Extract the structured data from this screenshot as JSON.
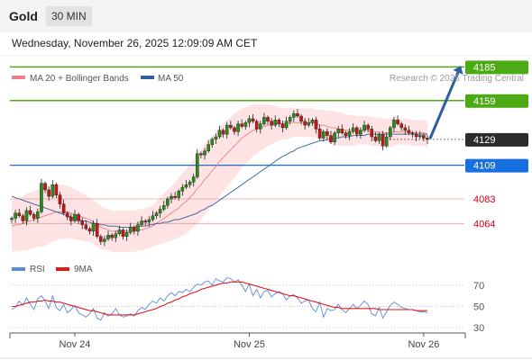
{
  "header": {
    "symbol": "Gold",
    "timeframe": "30 MIN"
  },
  "datetime": "Wednesday, November 26, 2025 12:09:09 AM CET",
  "legend": [
    {
      "label": "MA 20 + Bollinger Bands",
      "color": "#f08080"
    },
    {
      "label": "MA 50",
      "color": "#335f9e"
    }
  ],
  "credit": "Research © 2025 Trading Central",
  "chart_data": [
    {
      "type": "candlestick",
      "title": "",
      "y_axis": {
        "min": 4035,
        "max": 4195
      },
      "x_ticks": [
        {
          "index": 17,
          "label": "Nov 24"
        },
        {
          "index": 64,
          "label": "Nov 25"
        },
        {
          "index": 111,
          "label": "Nov 26"
        }
      ],
      "levels": [
        {
          "value": 4185,
          "label": "4185",
          "role": "resistance target",
          "color": "#4caa14",
          "style": "line-badge"
        },
        {
          "value": 4159,
          "label": "4159",
          "role": "resistance",
          "color": "#4caa14",
          "style": "line-badge"
        },
        {
          "value": 4129,
          "label": "4129",
          "role": "last price",
          "color": "#2b2b2b",
          "style": "dotted-badge"
        },
        {
          "value": 4109,
          "label": "4109",
          "role": "pivot",
          "color": "#1a6fe0",
          "style": "line-badge"
        },
        {
          "value": 4083,
          "label": "4083",
          "role": "support",
          "color": "#d0021b",
          "style": "thin-text"
        },
        {
          "value": 4064,
          "label": "4064",
          "role": "support",
          "color": "#d0021b",
          "style": "thin-text"
        }
      ],
      "forecast_arrow": {
        "from": 4129,
        "to": 4185,
        "color": "#2b5e9e"
      },
      "close": [
        4068,
        4072,
        4070,
        4066,
        4074,
        4071,
        4068,
        4073,
        4095,
        4090,
        4085,
        4094,
        4086,
        4079,
        4072,
        4069,
        4066,
        4071,
        4066,
        4063,
        4060,
        4058,
        4064,
        4054,
        4050,
        4052,
        4055,
        4053,
        4056,
        4059,
        4054,
        4057,
        4061,
        4058,
        4063,
        4066,
        4065,
        4067,
        4070,
        4072,
        4075,
        4078,
        4083,
        4085,
        4084,
        4089,
        4092,
        4094,
        4096,
        4100,
        4118,
        4117,
        4120,
        4125,
        4129,
        4131,
        4136,
        4133,
        4140,
        4138,
        4135,
        4141,
        4139,
        4142,
        4145,
        4143,
        4137,
        4141,
        4146,
        4143,
        4140,
        4144,
        4141,
        4138,
        4143,
        4146,
        4149,
        4147,
        4143,
        4140,
        4142,
        4144,
        4137,
        4130,
        4135,
        4132,
        4127,
        4134,
        4137,
        4134,
        4132,
        4135,
        4138,
        4133,
        4136,
        4140,
        4137,
        4131,
        4128,
        4133,
        4124,
        4131,
        4138,
        4144,
        4141,
        4138,
        4136,
        4134,
        4133,
        4131,
        4132,
        4130,
        4129
      ],
      "ma20": [
        4062,
        4063,
        4063,
        4064,
        4065,
        4066,
        4067,
        4068,
        4069,
        4070,
        4071,
        4072,
        4073,
        4073,
        4073,
        4073,
        4072,
        4071,
        4070,
        4069,
        4068,
        4067,
        4065,
        4063,
        4061,
        4060,
        4059,
        4058,
        4058,
        4058,
        4058,
        4058,
        4058,
        4058,
        4059,
        4059,
        4060,
        4061,
        4062,
        4064,
        4066,
        4068,
        4070,
        4072,
        4074,
        4076,
        4079,
        4081,
        4084,
        4087,
        4091,
        4094,
        4098,
        4101,
        4105,
        4108,
        4112,
        4115,
        4118,
        4121,
        4124,
        4127,
        4130,
        4132,
        4134,
        4136,
        4137,
        4138,
        4139,
        4140,
        4140,
        4141,
        4141,
        4141,
        4141,
        4142,
        4142,
        4142,
        4142,
        4142,
        4142,
        4142,
        4141,
        4140,
        4140,
        4139,
        4138,
        4138,
        4137,
        4137,
        4136,
        4136,
        4136,
        4136,
        4136,
        4136,
        4136,
        4135,
        4135,
        4135,
        4134,
        4134,
        4134,
        4135,
        4135,
        4135,
        4135,
        4135,
        4134,
        4134,
        4134,
        4134,
        4133
      ],
      "ma50": [
        4085,
        4084,
        4083,
        4082,
        4081,
        4080,
        4079,
        4078,
        4077,
        4076,
        4075,
        4074,
        4073,
        4072,
        4071,
        4070,
        4069,
        4068,
        4067,
        4066,
        4066,
        4065,
        4064,
        4064,
        4063,
        4063,
        4062,
        4062,
        4062,
        4061,
        4061,
        4061,
        4061,
        4061,
        4062,
        4062,
        4062,
        4063,
        4063,
        4064,
        4064,
        4065,
        4065,
        4066,
        4067,
        4067,
        4068,
        4069,
        4070,
        4071,
        4072,
        4074,
        4075,
        4077,
        4078,
        4080,
        4082,
        4084,
        4086,
        4088,
        4090,
        4092,
        4094,
        4096,
        4098,
        4100,
        4102,
        4104,
        4106,
        4108,
        4110,
        4112,
        4114,
        4116,
        4117,
        4119,
        4120,
        4122,
        4123,
        4124,
        4125,
        4126,
        4127,
        4128,
        4128,
        4129,
        4129,
        4130,
        4130,
        4131,
        4131,
        4131,
        4132,
        4132,
        4132,
        4132,
        4133,
        4133,
        4133,
        4133,
        4133,
        4133,
        4133,
        4133,
        4133,
        4133,
        4133,
        4133,
        4133,
        4133,
        4133,
        4133,
        4133
      ],
      "bb_width": [
        20,
        20,
        21,
        21,
        22,
        22,
        22,
        22,
        23,
        23,
        23,
        22,
        22,
        21,
        21,
        20,
        20,
        19,
        19,
        18,
        18,
        17,
        17,
        17,
        17,
        16,
        16,
        16,
        16,
        16,
        16,
        16,
        16,
        16,
        16,
        16,
        16,
        16,
        16,
        17,
        18,
        19,
        20,
        21,
        22,
        23,
        24,
        25,
        25,
        26,
        27,
        27,
        27,
        27,
        27,
        27,
        27,
        26,
        26,
        25,
        25,
        24,
        23,
        22,
        21,
        20,
        19,
        18,
        17,
        16,
        15,
        14,
        13,
        12,
        12,
        12,
        11,
        11,
        11,
        11,
        11,
        11,
        11,
        12,
        12,
        12,
        13,
        13,
        13,
        13,
        12,
        12,
        12,
        11,
        11,
        11,
        11,
        11,
        11,
        11,
        11,
        11,
        11,
        11,
        10,
        10,
        10,
        10,
        10,
        10,
        10,
        10,
        10
      ]
    },
    {
      "type": "line",
      "title": "",
      "y_axis": {
        "min": 25,
        "max": 80,
        "ticks": [
          70,
          50,
          30
        ]
      },
      "legend": [
        {
          "name": "RSI",
          "color": "#5b8bdc"
        },
        {
          "name": "9MA",
          "color": "#e01818"
        }
      ],
      "x_ticks": [
        {
          "index": 17,
          "label": "Nov 24"
        },
        {
          "index": 64,
          "label": "Nov 25"
        },
        {
          "index": 111,
          "label": "Nov 26"
        }
      ],
      "rsi": [
        47,
        49,
        55,
        51,
        58,
        52,
        47,
        57,
        60,
        55,
        48,
        60,
        49,
        46,
        52,
        44,
        47,
        51,
        44,
        42,
        40,
        43,
        48,
        39,
        37,
        44,
        41,
        43,
        48,
        42,
        40,
        41,
        43,
        41,
        46,
        49,
        47,
        52,
        55,
        53,
        58,
        55,
        60,
        63,
        60,
        64,
        63,
        66,
        64,
        68,
        71,
        70,
        73,
        74,
        70,
        76,
        74,
        73,
        77,
        76,
        73,
        75,
        70,
        64,
        71,
        60,
        66,
        58,
        64,
        65,
        59,
        62,
        64,
        62,
        56,
        60,
        61,
        58,
        53,
        55,
        56,
        48,
        45,
        54,
        40,
        48,
        46,
        47,
        52,
        47,
        44,
        48,
        52,
        48,
        51,
        55,
        52,
        43,
        41,
        49,
        39,
        45,
        51,
        54,
        52,
        49,
        48,
        47,
        47,
        46,
        45,
        45,
        44
      ],
      "rsi_ma": [
        50,
        50,
        51,
        52,
        53,
        54,
        54,
        55,
        55,
        56,
        55,
        55,
        54,
        54,
        53,
        52,
        51,
        50,
        49,
        48,
        47,
        46,
        46,
        45,
        44,
        43,
        42,
        42,
        42,
        42,
        42,
        42,
        42,
        42,
        43,
        44,
        45,
        46,
        47,
        48,
        50,
        51,
        53,
        54,
        56,
        57,
        59,
        60,
        62,
        63,
        64,
        66,
        67,
        68,
        69,
        70,
        71,
        72,
        72,
        73,
        73,
        73,
        73,
        72,
        71,
        70,
        69,
        68,
        67,
        66,
        65,
        64,
        63,
        62,
        61,
        60,
        60,
        59,
        58,
        57,
        56,
        55,
        54,
        53,
        52,
        51,
        50,
        49,
        49,
        48,
        48,
        48,
        48,
        48,
        48,
        48,
        48,
        48,
        48,
        47,
        47,
        47,
        47,
        47,
        47,
        47,
        47,
        47,
        47,
        46,
        46,
        46,
        46
      ]
    }
  ]
}
